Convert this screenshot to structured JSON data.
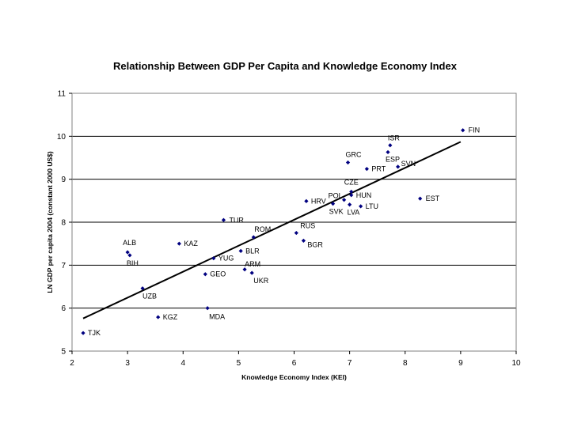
{
  "chart_data": {
    "type": "scatter",
    "title": "Relationship Between GDP Per Capita and Knowledge Economy Index",
    "xlabel": "Knowledge Economy Index (KEI)",
    "ylabel": "LN GDP per capita 2004 (constant 2000 US$)",
    "xlim": [
      2,
      10
    ],
    "ylim": [
      5,
      11
    ],
    "xticks": [
      2,
      3,
      4,
      5,
      6,
      7,
      8,
      9,
      10
    ],
    "yticks": [
      5,
      6,
      7,
      8,
      9,
      10,
      11
    ],
    "grid": "horizontal",
    "marker_color": "#000080",
    "trendline": {
      "x": [
        2.2,
        9.0
      ],
      "y": [
        5.76,
        9.87
      ]
    },
    "points": [
      {
        "label": "TJK",
        "x": 2.2,
        "y": 5.42
      },
      {
        "label": "ALB",
        "x": 3.0,
        "y": 7.3
      },
      {
        "label": "BIH",
        "x": 3.04,
        "y": 7.23
      },
      {
        "label": "UZB",
        "x": 3.27,
        "y": 6.46
      },
      {
        "label": "KGZ",
        "x": 3.55,
        "y": 5.79
      },
      {
        "label": "KAZ",
        "x": 3.93,
        "y": 7.5
      },
      {
        "label": "GEO",
        "x": 4.4,
        "y": 6.79
      },
      {
        "label": "MDA",
        "x": 4.44,
        "y": 6.0
      },
      {
        "label": "YUG",
        "x": 4.55,
        "y": 7.16
      },
      {
        "label": "TUR",
        "x": 4.73,
        "y": 8.05
      },
      {
        "label": "BLR",
        "x": 5.04,
        "y": 7.33
      },
      {
        "label": "ARM",
        "x": 5.11,
        "y": 6.9
      },
      {
        "label": "UKR",
        "x": 5.24,
        "y": 6.82
      },
      {
        "label": "ROM",
        "x": 5.27,
        "y": 7.65
      },
      {
        "label": "RUS",
        "x": 6.04,
        "y": 7.75
      },
      {
        "label": "BGR",
        "x": 6.17,
        "y": 7.57
      },
      {
        "label": "HRV",
        "x": 6.22,
        "y": 8.49
      },
      {
        "label": "SVK",
        "x": 6.7,
        "y": 8.43
      },
      {
        "label": "POL",
        "x": 6.9,
        "y": 8.52
      },
      {
        "label": "LVA",
        "x": 7.0,
        "y": 8.41
      },
      {
        "label": "CZE",
        "x": 7.03,
        "y": 8.71
      },
      {
        "label": "HUN",
        "x": 7.03,
        "y": 8.63
      },
      {
        "label": "LTU",
        "x": 7.2,
        "y": 8.37
      },
      {
        "label": "GRC",
        "x": 6.97,
        "y": 9.39
      },
      {
        "label": "PRT",
        "x": 7.31,
        "y": 9.24
      },
      {
        "label": "ESP",
        "x": 7.69,
        "y": 9.63
      },
      {
        "label": "ISR",
        "x": 7.73,
        "y": 9.79
      },
      {
        "label": "SVN",
        "x": 7.87,
        "y": 9.29
      },
      {
        "label": "EST",
        "x": 8.27,
        "y": 8.55
      },
      {
        "label": "FIN",
        "x": 9.04,
        "y": 10.14
      }
    ]
  }
}
